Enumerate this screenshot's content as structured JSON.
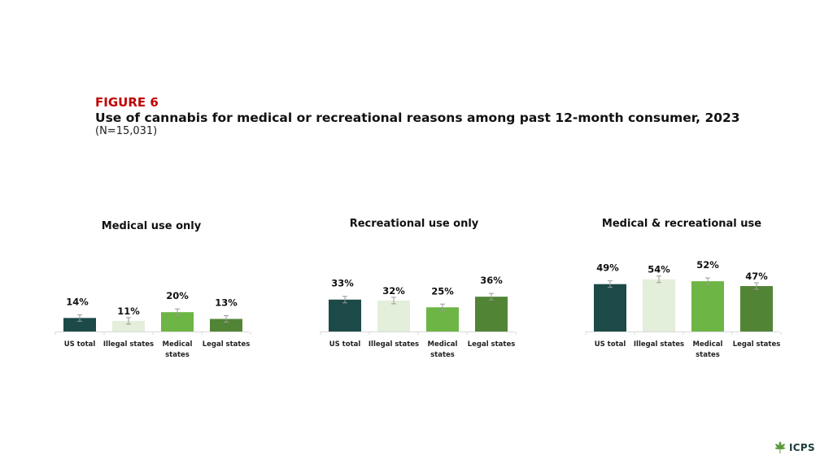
{
  "figure": {
    "label": "FIGURE 6",
    "title": "Use of cannabis for medical or recreational reasons among past 12-month consumer, 2023",
    "subtitle": "(N=15,031)"
  },
  "logo": {
    "text": "ICPS",
    "icon": "cannabis-leaf-icon"
  },
  "colors": {
    "us_total": "#1b4a48",
    "illegal_states": "#e3eedb",
    "medical_states": "#6db545",
    "legal_states": "#528436",
    "axis": "#d9d9d9",
    "error_bar": "#9a9a9a"
  },
  "chart_data": [
    {
      "type": "bar",
      "title": "Medical use only",
      "categories": [
        "US total",
        "Illegal states",
        "Medical states",
        "Legal states"
      ],
      "values": [
        14,
        11,
        20,
        13
      ],
      "data_labels": [
        "14%",
        "11%",
        "20%",
        "13%"
      ],
      "unit": "%",
      "error_bars": true
    },
    {
      "type": "bar",
      "title": "Recreational use only",
      "categories": [
        "US total",
        "Illegal states",
        "Medical states",
        "Legal states"
      ],
      "values": [
        33,
        32,
        25,
        36
      ],
      "data_labels": [
        "33%",
        "32%",
        "25%",
        "36%"
      ],
      "unit": "%",
      "error_bars": true
    },
    {
      "type": "bar",
      "title": "Medical & recreational use",
      "categories": [
        "US total",
        "Illegal states",
        "Medical states",
        "Legal states"
      ],
      "values": [
        49,
        54,
        52,
        47
      ],
      "data_labels": [
        "49%",
        "54%",
        "52%",
        "47%"
      ],
      "unit": "%",
      "error_bars": true
    }
  ]
}
